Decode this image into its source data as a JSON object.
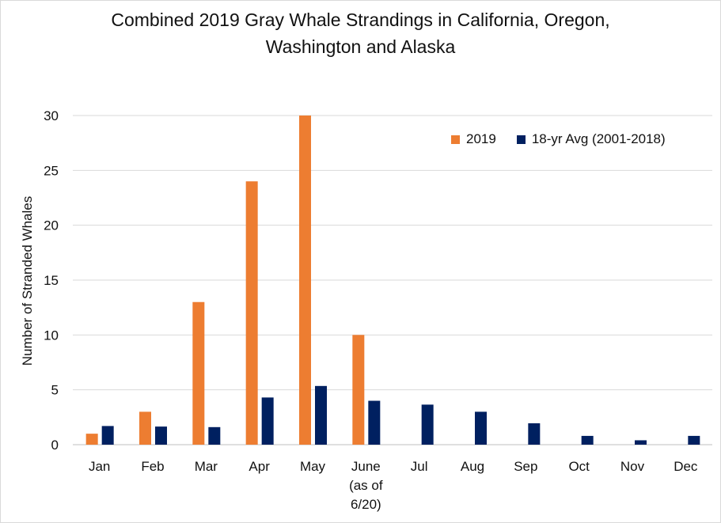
{
  "chart_data": {
    "type": "bar",
    "title_lines": [
      "Combined 2019 Gray Whale Strandings in California, Oregon,",
      "Washington and Alaska"
    ],
    "xlabel": "",
    "ylabel": "Number of Stranded Whales",
    "ylim": [
      0,
      30
    ],
    "yticks": [
      "0",
      "5",
      "10",
      "15",
      "20",
      "25",
      "30"
    ],
    "grid": "horizontal",
    "legend_position": "top-right",
    "categories": [
      [
        "Jan"
      ],
      [
        "Feb"
      ],
      [
        "Mar"
      ],
      [
        "Apr"
      ],
      [
        "May"
      ],
      [
        "June",
        "(as of",
        "6/20)"
      ],
      [
        "Jul"
      ],
      [
        "Aug"
      ],
      [
        "Sep"
      ],
      [
        "Oct"
      ],
      [
        "Nov"
      ],
      [
        "Dec"
      ]
    ],
    "series": [
      {
        "name": "2019",
        "color": "#ED7D31",
        "values": [
          1,
          3,
          13,
          24,
          30,
          10,
          null,
          null,
          null,
          null,
          null,
          null
        ]
      },
      {
        "name": "18-yr Avg (2001-2018)",
        "color": "#002060",
        "values": [
          1.7,
          1.65,
          1.6,
          4.3,
          5.35,
          4.0,
          3.65,
          3.0,
          1.95,
          0.8,
          0.4,
          0.8
        ]
      }
    ]
  }
}
